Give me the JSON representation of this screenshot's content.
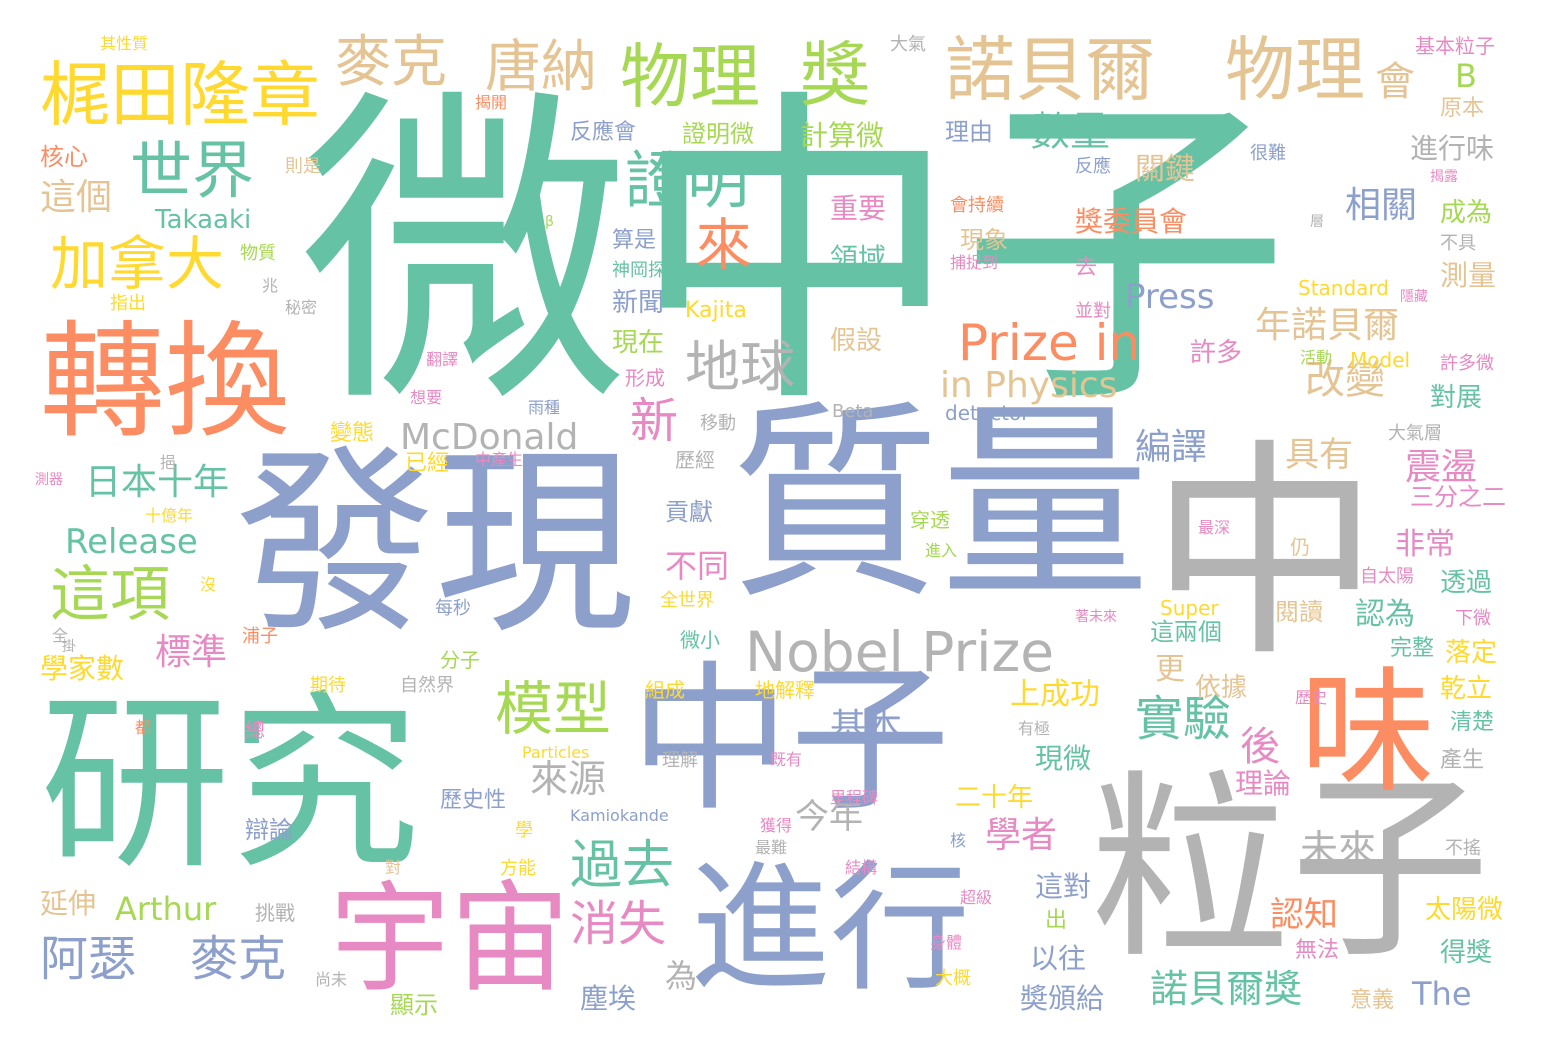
{
  "palette": {
    "c0": "#66c2a5",
    "c1": "#fc8d62",
    "c2": "#8da0cb",
    "c3": "#e78ac3",
    "c4": "#a6d854",
    "c5": "#ffd92f",
    "c6": "#e5c494",
    "c7": "#b3b3b3"
  },
  "words": [
    "微中子",
    "質量",
    "發現",
    "中",
    "中子",
    "研究",
    "粒子",
    "轉換",
    "進行",
    "宇宙",
    "味",
    "梶田隆章",
    "麥克",
    "唐納",
    "物理",
    "獎",
    "諾貝爾",
    "物理",
    "會",
    "世界",
    "證明",
    "加拿大",
    "來",
    "地球",
    "Prize in",
    "Nobel Prize",
    "McDonald",
    "in Physics",
    "這項",
    "過去",
    "消失",
    "模型",
    "實驗",
    "阿瑟",
    "麥克",
    "Arthur",
    "Release",
    "日本十年",
    "新",
    "數量",
    "相關",
    "Press",
    "年諾貝爾",
    "改變",
    "編譯",
    "震盪",
    "基本",
    "來源",
    "今年",
    "未來",
    "諾貝爾獎",
    "學者",
    "認知",
    "具有",
    "後",
    "The",
    "其性質",
    "大氣",
    "基本粒子",
    "揭開",
    "核心",
    "這個",
    "則是",
    "Takaaki",
    "反應會",
    "證明微",
    "計算微",
    "理由",
    "反應",
    "很難",
    "重要",
    "會持續",
    "獎委員會",
    "成為",
    "領域",
    "捕捉到",
    "現象",
    "去",
    "Standard",
    "新聞",
    "Kajita",
    "現在",
    "物質",
    "秘密",
    "指出",
    "假設",
    "並對",
    "許多",
    "形成",
    "Beta",
    "detector",
    "活動",
    "Model",
    "許多微",
    "想要",
    "雨種",
    "移動",
    "大氣層",
    "變態",
    "中產生",
    "已經",
    "貢獻",
    "穿透",
    "十億年",
    "最深",
    "進入",
    "不同",
    "標準",
    "全世界",
    "每秒",
    "仍",
    "自太陽",
    "透過",
    "下微",
    "完整",
    "落定",
    "閱讀",
    "這兩個",
    "學家數",
    "分子",
    "微小",
    "自然界",
    "期待",
    "組成",
    "地解釋",
    "上成功",
    "依據",
    "乾立",
    "清楚",
    "總",
    "有極",
    "歷史",
    "Particles",
    "理解",
    "既有",
    "現微",
    "理論",
    "產生",
    "辯論",
    "歷史性",
    "里程碑",
    "二十年",
    "核",
    "延伸",
    "挑戰",
    "對",
    "方能",
    "超級",
    "大概",
    "身體",
    "這對",
    "出",
    "無法",
    "太陽微",
    "得獎",
    "顯示",
    "尚未",
    "以往",
    "奬頒給",
    "為",
    "意義",
    "原本",
    "不具",
    "測量",
    "進行味",
    "層",
    "揭露",
    "B",
    "全",
    "兆",
    "β",
    "Super",
    "著未來",
    "浦子",
    "都",
    "學",
    "Kamiokande",
    "最難",
    "結構",
    "獲得",
    "塵埃",
    "翻譯",
    "測器",
    "挹",
    "歷經",
    "三分之二",
    "對展",
    "更",
    "非常",
    "認為",
    "關鍵",
    "不搖",
    "神岡探",
    "算是",
    "隱藏",
    "掛",
    "沒"
  ]
}
